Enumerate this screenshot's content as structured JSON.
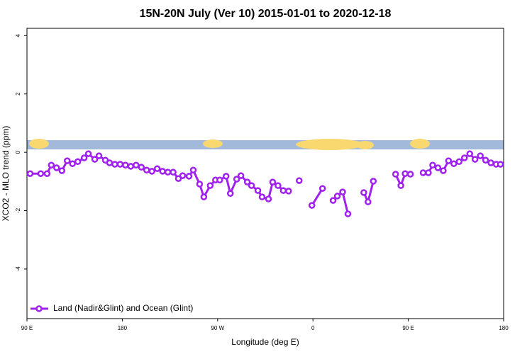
{
  "chart_data": {
    "type": "line",
    "title": "15N-20N July (Ver 10)   2015-01-01 to 2020-12-18",
    "xlabel": "Longitude (deg E)",
    "ylabel": "XCO2 - MLO trend (ppm)",
    "x": [
      93,
      103,
      109,
      113,
      118,
      123,
      128,
      133,
      138,
      144,
      148,
      154,
      158,
      164,
      168,
      173,
      178,
      183,
      188,
      193,
      198,
      203,
      208,
      213,
      218,
      223,
      228,
      233,
      237,
      243,
      247,
      253,
      257,
      263,
      268,
      272,
      278,
      282,
      288,
      292,
      298,
      302,
      308,
      312,
      318,
      322,
      327,
      332,
      337,
      null,
      347,
      null,
      359,
      369,
      null,
      379,
      383,
      388,
      393,
      null,
      408,
      412,
      417,
      null,
      438,
      443,
      447,
      452,
      null,
      464,
      469,
      473,
      478,
      483,
      488,
      493,
      498,
      503,
      508,
      513,
      518,
      523,
      528,
      533,
      537
    ],
    "series": [
      {
        "name": "Land (Nadir&Glint) and Ocean (Glint)",
        "color": "#a020f0",
        "values": [
          -0.73,
          -0.73,
          -0.73,
          -0.44,
          -0.53,
          -0.63,
          -0.29,
          -0.39,
          -0.32,
          -0.19,
          -0.05,
          -0.24,
          -0.12,
          -0.27,
          -0.36,
          -0.41,
          -0.41,
          -0.44,
          -0.48,
          -0.44,
          -0.51,
          -0.61,
          -0.65,
          -0.56,
          -0.65,
          -0.68,
          -0.68,
          -0.9,
          -0.8,
          -0.82,
          -0.61,
          -1.09,
          -1.53,
          -1.14,
          -0.95,
          -0.95,
          -0.82,
          -1.41,
          -0.92,
          -0.8,
          -1.02,
          -1.14,
          -1.31,
          -1.53,
          -1.6,
          -1.02,
          -1.14,
          -1.31,
          -1.33,
          null,
          -0.97,
          null,
          -1.82,
          -1.24,
          null,
          -1.65,
          -1.5,
          -1.36,
          -2.11,
          null,
          -1.38,
          -1.7,
          -0.99,
          null,
          -0.75,
          -1.14,
          -0.73,
          -0.75,
          null,
          -0.7,
          -0.7,
          -0.44,
          -0.53,
          -0.63,
          -0.29,
          -0.39,
          -0.32,
          -0.19,
          -0.05,
          -0.24,
          -0.12,
          -0.27,
          -0.36,
          -0.41,
          -0.41
        ]
      }
    ],
    "xlim": [
      90,
      540
    ],
    "xticks": [
      {
        "value": 90,
        "label": "90 E"
      },
      180,
      {
        "value": 270,
        "label": "90 W"
      },
      {
        "value": 360,
        "label": "0"
      },
      {
        "value": 450,
        "label": "90 E"
      },
      {
        "value": 540,
        "label": "180"
      }
    ],
    "ylim": [
      -5.7,
      4.25
    ],
    "yticks": [
      -4,
      -2,
      0,
      2,
      4
    ],
    "legend": "bottom-left"
  }
}
